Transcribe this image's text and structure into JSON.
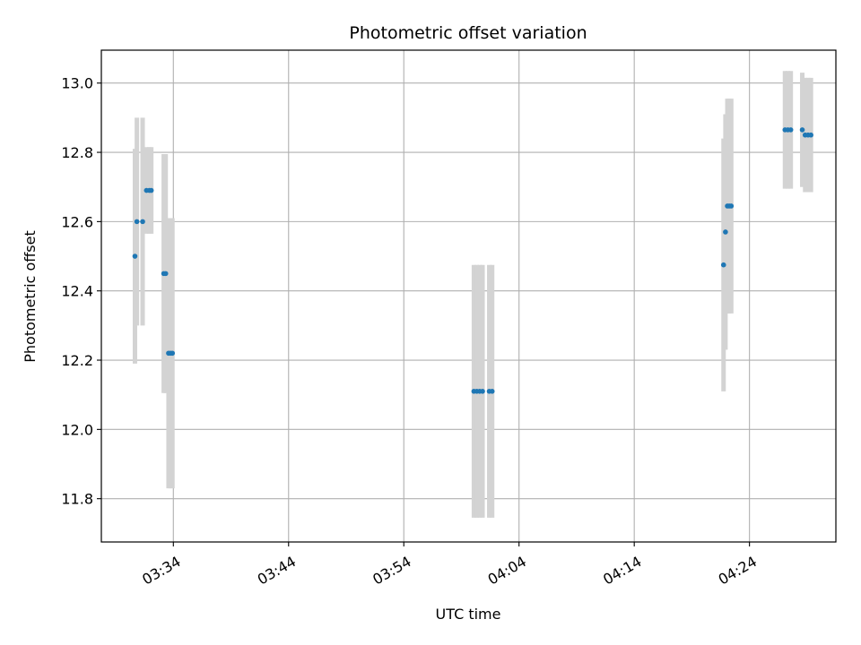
{
  "chart_data": {
    "type": "scatter",
    "title": "Photometric offset variation",
    "xlabel": "UTC time",
    "ylabel": "Photometric offset",
    "x_ticks": [
      "03:34",
      "03:44",
      "03:54",
      "04:04",
      "04:14",
      "04:24"
    ],
    "y_ticks": [
      "11.8",
      "12.0",
      "12.2",
      "12.4",
      "12.6",
      "12.8",
      "13.0"
    ],
    "xlim": [
      "03:27:45",
      "04:31:30"
    ],
    "ylim": [
      11.675,
      13.095
    ],
    "grid": true,
    "points": [
      {
        "t": "03:30:40",
        "y": 12.5,
        "err": 0.31
      },
      {
        "t": "03:30:50",
        "y": 12.6,
        "err": 0.3
      },
      {
        "t": "03:31:20",
        "y": 12.6,
        "err": 0.3
      },
      {
        "t": "03:31:40",
        "y": 12.69,
        "err": 0.125
      },
      {
        "t": "03:31:55",
        "y": 12.69,
        "err": 0.125
      },
      {
        "t": "03:32:05",
        "y": 12.69,
        "err": 0.125
      },
      {
        "t": "03:33:10",
        "y": 12.45,
        "err": 0.345
      },
      {
        "t": "03:33:20",
        "y": 12.45,
        "err": 0.345
      },
      {
        "t": "03:33:35",
        "y": 12.22,
        "err": 0.39
      },
      {
        "t": "03:33:45",
        "y": 12.22,
        "err": 0.39
      },
      {
        "t": "03:33:55",
        "y": 12.22,
        "err": 0.39
      },
      {
        "t": "04:00:05",
        "y": 12.11,
        "err": 0.365
      },
      {
        "t": "04:00:20",
        "y": 12.11,
        "err": 0.365
      },
      {
        "t": "04:00:35",
        "y": 12.11,
        "err": 0.365
      },
      {
        "t": "04:00:50",
        "y": 12.11,
        "err": 0.365
      },
      {
        "t": "04:01:25",
        "y": 12.11,
        "err": 0.365
      },
      {
        "t": "04:01:40",
        "y": 12.11,
        "err": 0.365
      },
      {
        "t": "04:21:45",
        "y": 12.475,
        "err": 0.365
      },
      {
        "t": "04:21:55",
        "y": 12.57,
        "err": 0.34
      },
      {
        "t": "04:22:05",
        "y": 12.645,
        "err": 0.31
      },
      {
        "t": "04:22:15",
        "y": 12.645,
        "err": 0.31
      },
      {
        "t": "04:22:25",
        "y": 12.645,
        "err": 0.31
      },
      {
        "t": "04:27:05",
        "y": 12.865,
        "err": 0.17
      },
      {
        "t": "04:27:20",
        "y": 12.865,
        "err": 0.17
      },
      {
        "t": "04:27:35",
        "y": 12.865,
        "err": 0.17
      },
      {
        "t": "04:28:35",
        "y": 12.865,
        "err": 0.165
      },
      {
        "t": "04:28:50",
        "y": 12.85,
        "err": 0.165
      },
      {
        "t": "04:29:05",
        "y": 12.85,
        "err": 0.165
      },
      {
        "t": "04:29:20",
        "y": 12.85,
        "err": 0.165
      }
    ],
    "point_color": "#1f77b4",
    "errorbar_color": "#d3d3d3",
    "grid_color": "#b0b0b0"
  }
}
